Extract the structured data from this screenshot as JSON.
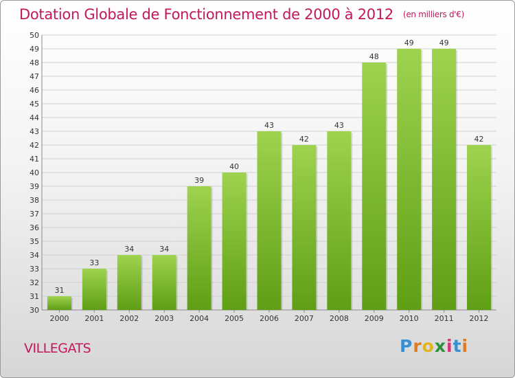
{
  "title": "Dotation Globale de Fonctionnement de 2000 à 2012",
  "unit_label": "(en milliers d'€)",
  "commune": "VILLEGATS",
  "logo": {
    "text": "Proxiti"
  },
  "colors": {
    "bar_top": "#9ed34f",
    "bar_bottom": "#5f9e15",
    "title": "#c2185b"
  },
  "chart_data": {
    "type": "bar",
    "categories": [
      "2000",
      "2001",
      "2002",
      "2003",
      "2004",
      "2005",
      "2006",
      "2007",
      "2008",
      "2009",
      "2010",
      "2011",
      "2012"
    ],
    "values": [
      31,
      33,
      34,
      34,
      39,
      40,
      43,
      42,
      43,
      48,
      49,
      49,
      42
    ],
    "ylim": [
      30,
      50
    ],
    "yticks": [
      30,
      31,
      32,
      33,
      34,
      35,
      36,
      37,
      38,
      39,
      40,
      41,
      42,
      43,
      44,
      45,
      46,
      47,
      48,
      49,
      50
    ],
    "grid": true,
    "xlabel": "",
    "ylabel": ""
  }
}
